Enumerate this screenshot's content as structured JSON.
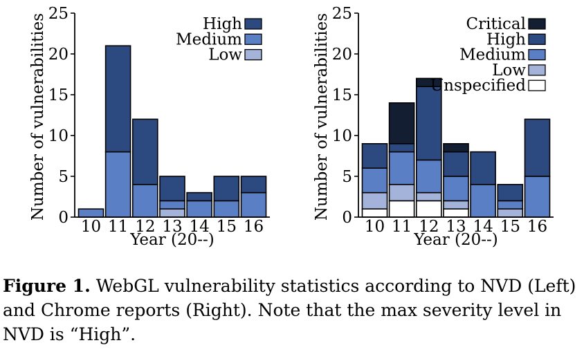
{
  "chart_data": [
    {
      "type": "bar",
      "stacked": true,
      "categories": [
        "10",
        "11",
        "12",
        "13",
        "14",
        "15",
        "16"
      ],
      "series": [
        {
          "name": "Low",
          "color": "#a3b3da",
          "values": [
            0,
            0,
            0,
            1,
            0,
            0,
            0
          ]
        },
        {
          "name": "Medium",
          "color": "#5a7fc4",
          "values": [
            1,
            8,
            4,
            1,
            2,
            2,
            3
          ]
        },
        {
          "name": "High",
          "color": "#2d4a80",
          "values": [
            0,
            13,
            8,
            3,
            1,
            3,
            2
          ]
        }
      ],
      "xlabel": "Year (20--)",
      "ylabel": "Number of vulnerabilities",
      "ylim": [
        0,
        25
      ],
      "yticks": [
        0,
        5,
        10,
        15,
        20,
        25
      ],
      "legend": "top-right",
      "grid": false
    },
    {
      "type": "bar",
      "stacked": true,
      "categories": [
        "10",
        "11",
        "12",
        "13",
        "14",
        "15",
        "16"
      ],
      "series": [
        {
          "name": "Unspecified",
          "color": "#ffffff",
          "values": [
            1,
            2,
            2,
            1,
            0,
            0,
            0
          ]
        },
        {
          "name": "Low",
          "color": "#a3b3da",
          "values": [
            2,
            2,
            1,
            1,
            0,
            1,
            0
          ]
        },
        {
          "name": "Medium",
          "color": "#5a7fc4",
          "values": [
            3,
            4,
            4,
            3,
            4,
            1,
            5
          ]
        },
        {
          "name": "High",
          "color": "#2d4a80",
          "values": [
            3,
            1,
            9,
            3,
            4,
            2,
            7
          ]
        },
        {
          "name": "Critical",
          "color": "#141e33",
          "values": [
            0,
            5,
            1,
            1,
            0,
            0,
            0
          ]
        }
      ],
      "xlabel": "Year (20--)",
      "ylabel": "Number of vulnerabilities",
      "ylim": [
        0,
        25
      ],
      "yticks": [
        0,
        5,
        10,
        15,
        20,
        25
      ],
      "legend": "top-right",
      "grid": false
    }
  ],
  "caption": {
    "label": "Figure 1.",
    "text": " WebGL vulnerability statistics according to NVD (Left) and Chrome reports (Right). Note that the max severity level in NVD is “High”."
  }
}
